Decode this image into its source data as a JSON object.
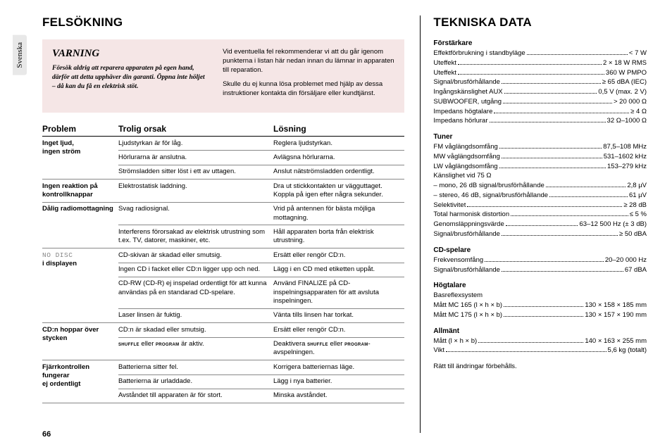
{
  "lang_tab": "Svenska",
  "page_number": "66",
  "left": {
    "heading": "FELSÖKNING",
    "warning": {
      "title": "VARNING",
      "body": "Försök aldrig att reparera apparaten på egen hand, därför att detta upphäver din garanti. Öppna inte höljet – då kan du få en elektrisk stöt.",
      "para1": "Vid eventuella fel rekommenderar vi att du går igenom punkterna i listan här nedan innan du lämnar in apparaten till reparation.",
      "para2": "Skulle du ej kunna lösa problemet med hjälp av dessa instruktioner kontakta din försäljare eller kundtjänst."
    },
    "columns": {
      "problem": "Problem",
      "cause": "Trolig orsak",
      "solution": "Lösning"
    },
    "groups": [
      {
        "problem": "Inget ljud,\ningen ström",
        "rows": [
          {
            "c": "Ljudstyrkan är för låg.",
            "s": "Reglera ljudstyrkan."
          },
          {
            "c": "Hörlurarna är anslutna.",
            "s": "Avlägsna hörlurarna."
          },
          {
            "c": "Strömsladden sitter löst i ett av uttagen.",
            "s": "Anslut nätströmsladden ordentligt."
          }
        ]
      },
      {
        "problem": "Ingen reaktion på kontrollknappar",
        "rows": [
          {
            "c": "Elektrostatisk laddning.",
            "s": "Dra ut stickkontakten ur vägguttaget. Koppla på igen efter några sekunder."
          }
        ]
      },
      {
        "problem": "Dålig radiomottagning",
        "rows": [
          {
            "c": "Svag radiosignal.",
            "s": "Vrid på antennen för bästa möjliga mottagning."
          },
          {
            "c": "Interferens förorsakad av elektrisk utrustning som t.ex. TV, datorer, maskiner, etc.",
            "s": "Håll apparaten borta från elektrisk utrustning."
          }
        ]
      },
      {
        "problem_html": "<span class='mono'>NO DISC</span><br><b>i displayen</b>",
        "rows": [
          {
            "c": "CD-skivan är skadad eller smutsig.",
            "s": "Ersätt eller rengör CD:n."
          },
          {
            "c": "Ingen CD i facket eller CD:n ligger upp och ned.",
            "s": "Lägg i en CD med etiketten uppåt."
          },
          {
            "c": "CD-RW (CD-R) ej inspelad ordentligt för att kunna användas på en standarad CD-spelare.",
            "s": "Använd FINALIZE på CD-inspelningsapparaten för att avsluta inspelningen."
          },
          {
            "c": "Laser linsen är fuktig.",
            "s": "Vänta tills linsen har torkat."
          }
        ]
      },
      {
        "problem": "CD:n hoppar över stycken",
        "rows": [
          {
            "c": "CD:n är skadad eller smutsig.",
            "s": "Ersätt eller rengör CD:n."
          },
          {
            "c_html": "<span class='smcaps'>shuffle</span> eller <span class='smcaps'>program</span> är aktiv.",
            "s_html": "Deaktivera <span class='smcaps'>shuffle</span> eller <span class='smcaps'>program</span>-avspelningen."
          }
        ]
      },
      {
        "problem": "Fjärrkontrollen fungerar\nej ordentligt",
        "rows": [
          {
            "c": "Batterierna sitter fel.",
            "s": "Korrigera batteriernas läge."
          },
          {
            "c": "Batterierna är urladdade.",
            "s": "Lägg i nya batterier."
          },
          {
            "c": "Avståndet till apparaten är för stort.",
            "s": "Minska avståndet."
          }
        ]
      }
    ]
  },
  "right": {
    "heading": "TEKNISKA DATA",
    "sections": [
      {
        "head": "Förstärkare",
        "rows": [
          {
            "l": "Effektförbrukning i standbyläge",
            "v": "< 7 W"
          },
          {
            "l": "Uteffekt",
            "v": "2 × 18 W RMS"
          },
          {
            "l": "Uteffekt",
            "v": "360 W PMPO"
          },
          {
            "l": "Signal/brusförhållande",
            "v": "≥ 65 dBA (IEC)"
          },
          {
            "l": "Ingångskänslighet AUX",
            "v": "0,5 V (max. 2 V)"
          },
          {
            "l": "SUBWOOFER, utgång",
            "v": "> 20 000 Ω"
          },
          {
            "l": "Impedans högtalare",
            "v": "≥ 4 Ω"
          },
          {
            "l": "Impedans hörlurar",
            "v": "32 Ω–1000 Ω"
          }
        ]
      },
      {
        "head": "Tuner",
        "rows": [
          {
            "l": "FM våglängdsomfång",
            "v": "87,5–108 MHz"
          },
          {
            "l": "MW våglängdsomfång",
            "v": "531–1602 kHz"
          },
          {
            "l": "LW våglängdsomfång",
            "v": "153–279 kHz"
          },
          {
            "l": "Känslighet vid 75 Ω",
            "v": "",
            "nodots": true
          },
          {
            "l": "– mono, 26 dB signal/brusförhållande",
            "v": "2,8 µV"
          },
          {
            "l": "– stereo, 46 dB, signal/brusförhållande",
            "v": "61 µV"
          },
          {
            "l": "Selektivitet",
            "v": "≥ 28 dB"
          },
          {
            "l": "Total harmonisk distortion",
            "v": "≤ 5 %"
          },
          {
            "l": "Genomsläppningsvärde",
            "v": "63–12 500 Hz (± 3 dB)"
          },
          {
            "l": "Signal/brusförhållande",
            "v": "≥ 50 dBA"
          }
        ]
      },
      {
        "head": "CD-spelare",
        "rows": [
          {
            "l": "Frekvensomfång",
            "v": "20–20 000 Hz"
          },
          {
            "l": "Signal/brusförhållande",
            "v": "67 dBA"
          }
        ]
      },
      {
        "head": "Högtalare",
        "rows": [
          {
            "l": "Basreflexsystem",
            "v": "",
            "nodots": true
          },
          {
            "l": "Mått MC 165 (l × h × b)",
            "v": "130 × 158 × 185 mm"
          },
          {
            "l": "Mått MC 175 (l × h × b)",
            "v": "130 × 157 × 190 mm"
          }
        ]
      },
      {
        "head": "Allmänt",
        "rows": [
          {
            "l": "Mått (l × h × b)",
            "v": "140 × 163 × 255 mm"
          },
          {
            "l": "Vikt",
            "v": "5,6 kg (totalt)"
          }
        ]
      }
    ],
    "footnote": "Rätt till ändringar förbehålls."
  }
}
